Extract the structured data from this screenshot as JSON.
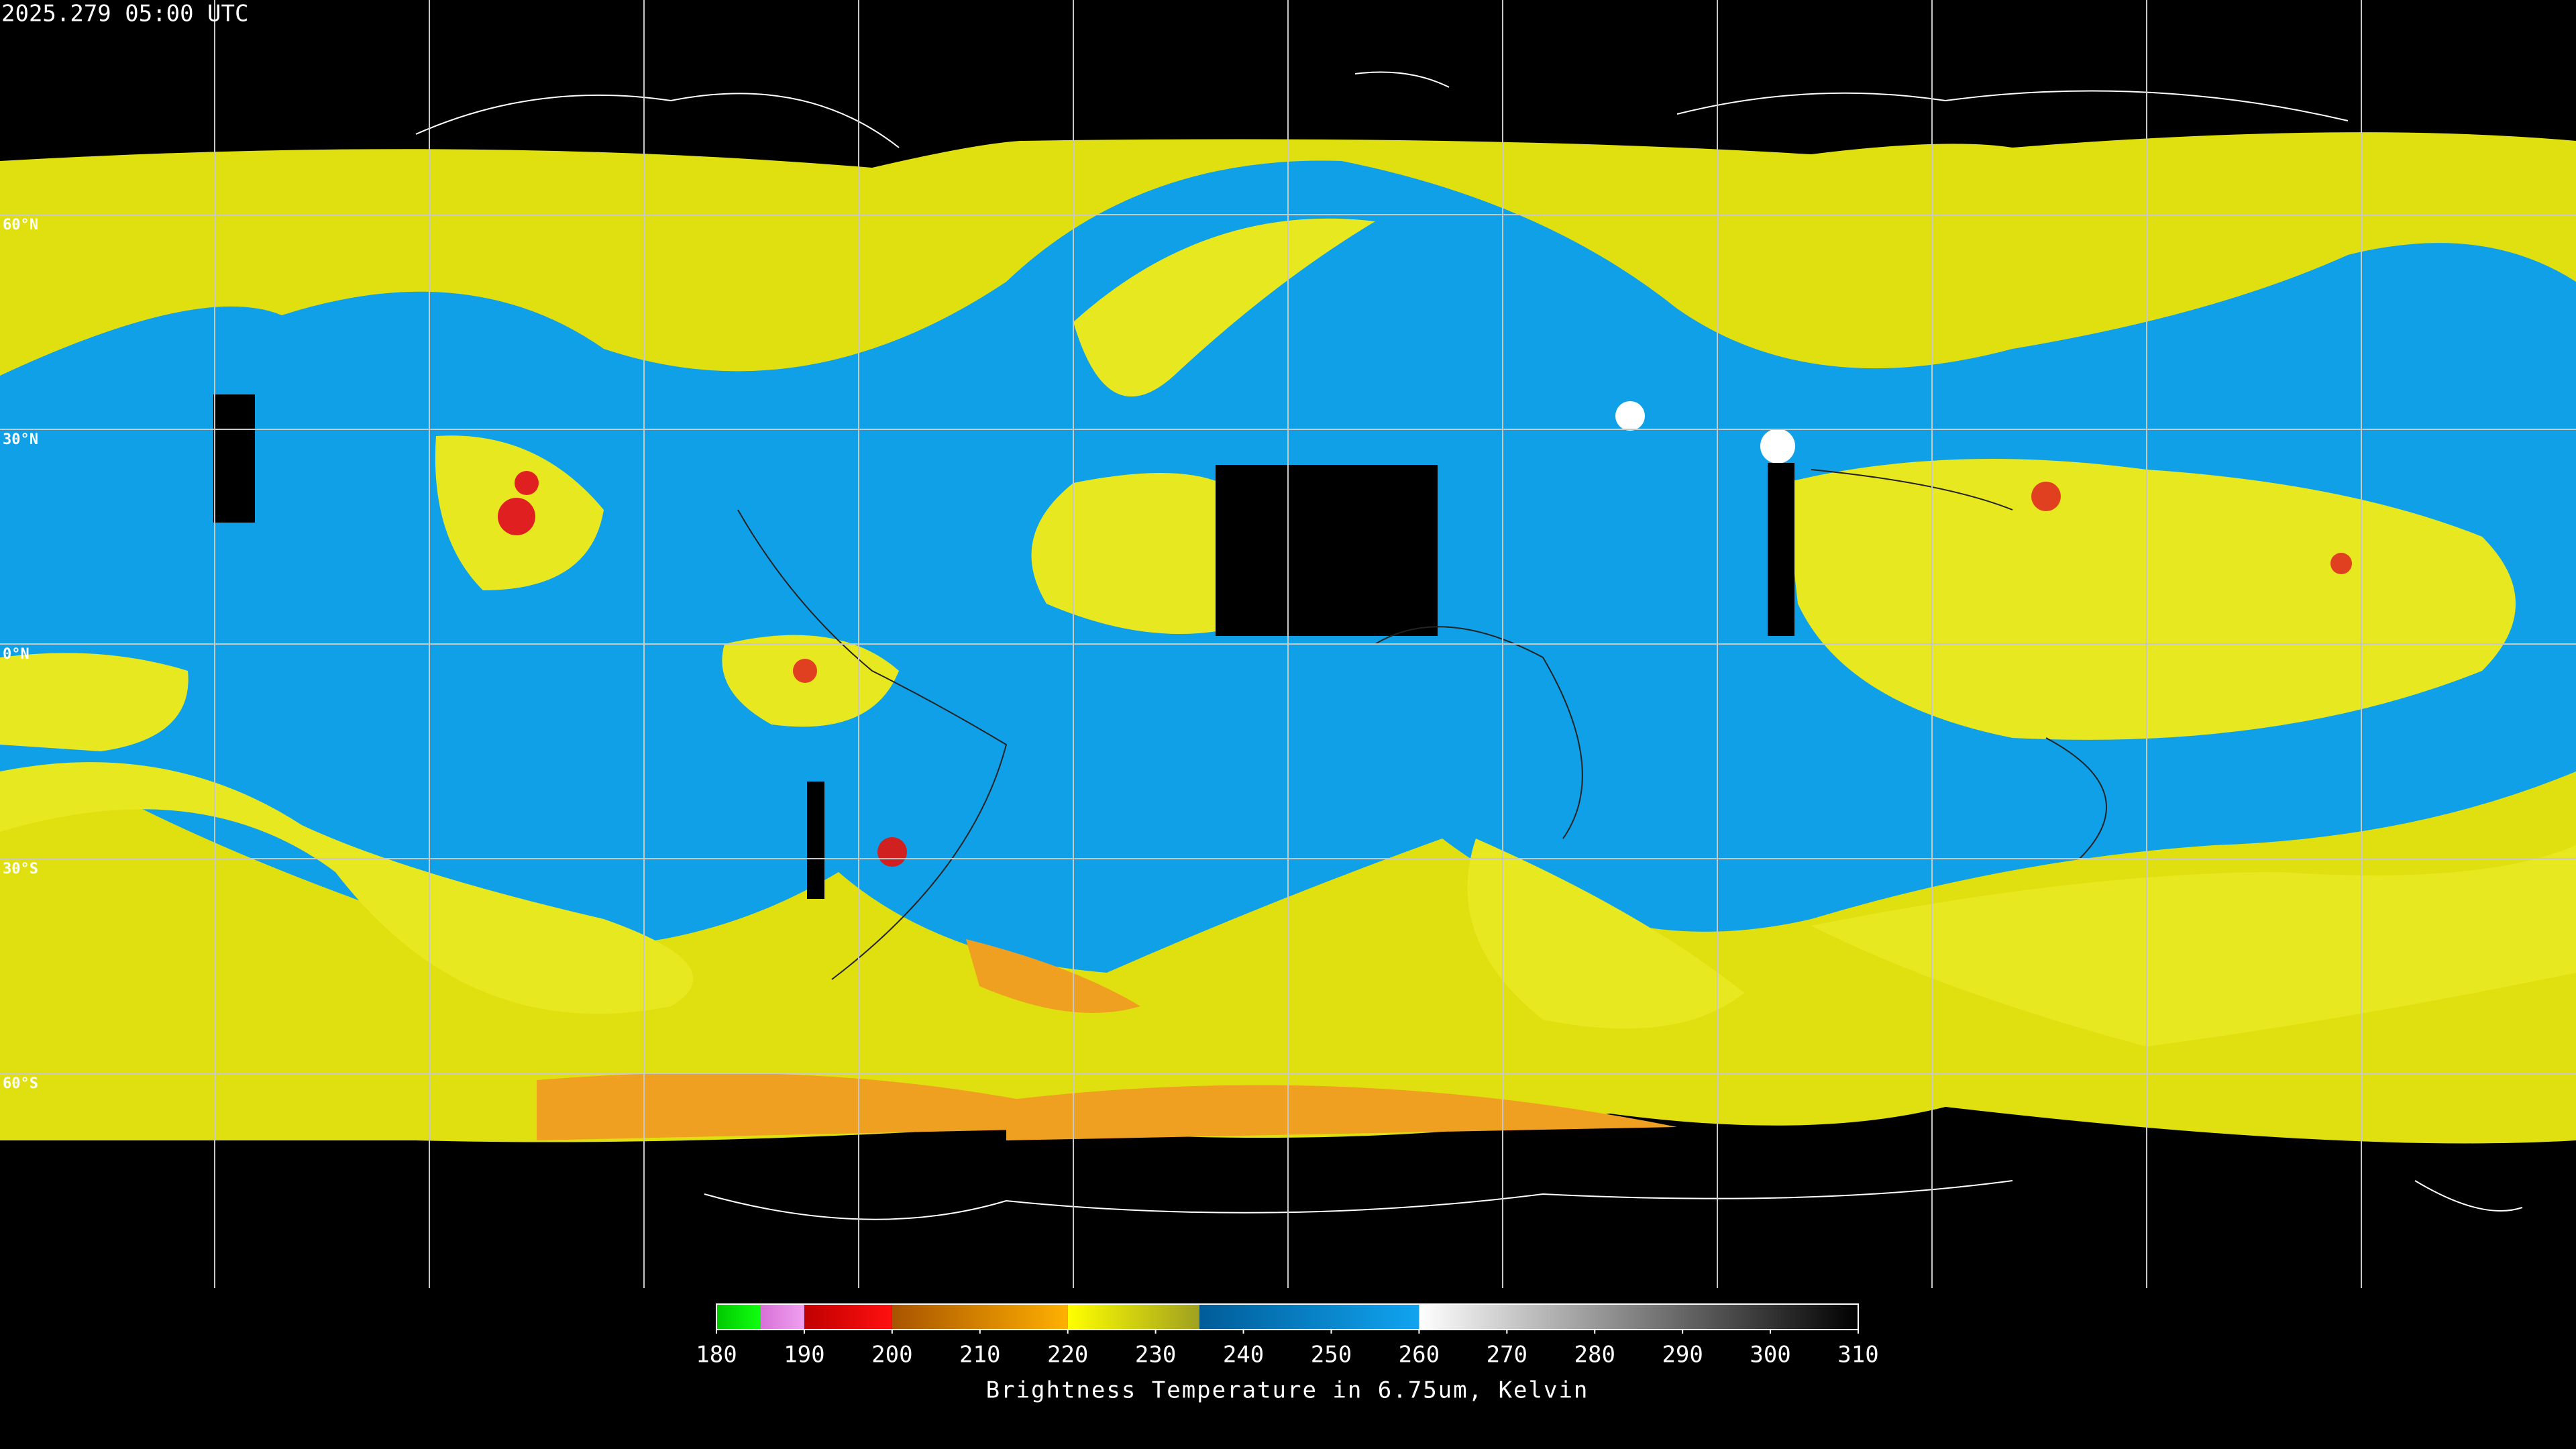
{
  "header": {
    "timestamp": "2025.279 05:00 UTC"
  },
  "map": {
    "lat_labels": [
      "60°N",
      "30°N",
      "0°N",
      "30°S",
      "60°S"
    ]
  },
  "colorbar": {
    "lim": [
      180,
      310
    ],
    "ticks": [
      180,
      190,
      200,
      210,
      220,
      230,
      240,
      250,
      260,
      270,
      280,
      290,
      300,
      310
    ],
    "segments": [
      {
        "from": 180,
        "to": 185,
        "colors": [
          "#00c800",
          "#10ff10"
        ]
      },
      {
        "from": 185,
        "to": 190,
        "colors": [
          "#d870d8",
          "#f0a0f0"
        ]
      },
      {
        "from": 190,
        "to": 200,
        "colors": [
          "#c00000",
          "#ff1010"
        ]
      },
      {
        "from": 200,
        "to": 220,
        "colors": [
          "#a85400",
          "#ffb000"
        ]
      },
      {
        "from": 220,
        "to": 235,
        "colors": [
          "#ffff00",
          "#a0a020"
        ]
      },
      {
        "from": 235,
        "to": 260,
        "colors": [
          "#005c98",
          "#10a4f0"
        ]
      },
      {
        "from": 260,
        "to": 310,
        "colors": [
          "#ffffff",
          "#000000"
        ]
      }
    ],
    "label": "Brightness Temperature in 6.75um, Kelvin"
  }
}
